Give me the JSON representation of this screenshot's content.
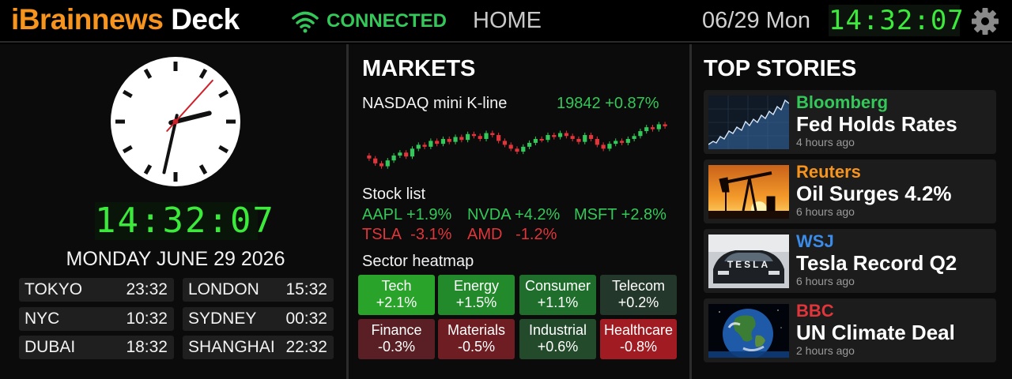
{
  "header": {
    "brand_part1": "iBrainnews",
    "brand_part2": "Deck",
    "status": "CONNECTED",
    "nav_home": "HOME",
    "date": "06/29 Mon",
    "clock": "14:32:07",
    "icons": {
      "wifi": "wifi-icon",
      "settings": "gear-icon"
    }
  },
  "clock_panel": {
    "analog_time": {
      "hour": 14,
      "minute": 32,
      "second": 7
    },
    "digital_time": "14:32:07",
    "long_date": "MONDAY JUNE 29 2026",
    "world_clocks": [
      {
        "city": "TOKYO",
        "time": "23:32"
      },
      {
        "city": "LONDON",
        "time": "15:32"
      },
      {
        "city": "NYC",
        "time": "10:32"
      },
      {
        "city": "SYDNEY",
        "time": "00:32"
      },
      {
        "city": "DUBAI",
        "time": "18:32"
      },
      {
        "city": "SHANGHAI",
        "time": "22:32"
      }
    ]
  },
  "markets": {
    "title": "MARKETS",
    "kline_label": "NASDAQ mini K-line",
    "kline_value": "19842 +0.87%",
    "kline_closes": [
      60,
      55,
      52,
      58,
      63,
      66,
      62,
      70,
      74,
      72,
      78,
      75,
      80,
      77,
      82,
      79,
      85,
      83,
      80,
      86,
      84,
      78,
      74,
      70,
      67,
      72,
      76,
      80,
      79,
      84,
      82,
      86,
      83,
      80,
      77,
      84,
      80,
      74,
      70,
      75,
      78,
      76,
      80,
      83,
      88,
      92,
      90,
      95,
      93
    ],
    "stock_list_label": "Stock list",
    "stocks": [
      {
        "symbol": "AAPL",
        "change": "+1.9%",
        "dir": "up"
      },
      {
        "symbol": "NVDA",
        "change": "+4.2%",
        "dir": "up"
      },
      {
        "symbol": "MSFT",
        "change": "+2.8%",
        "dir": "up"
      },
      {
        "symbol": "TSLA",
        "change": "-3.1%",
        "dir": "down"
      },
      {
        "symbol": "AMD",
        "change": "-1.2%",
        "dir": "down"
      }
    ],
    "heatmap_label": "Sector heatmap",
    "sectors": [
      {
        "name": "Tech",
        "change": "+2.1%",
        "color": "#2aa32a"
      },
      {
        "name": "Energy",
        "change": "+1.5%",
        "color": "#238a2c"
      },
      {
        "name": "Consumer",
        "change": "+1.1%",
        "color": "#1f6e2c"
      },
      {
        "name": "Telecom",
        "change": "+0.2%",
        "color": "#23382a"
      },
      {
        "name": "Finance",
        "change": "-0.3%",
        "color": "#5a1f24"
      },
      {
        "name": "Materials",
        "change": "-0.5%",
        "color": "#6e1d22"
      },
      {
        "name": "Industrial",
        "change": "+0.6%",
        "color": "#244a2c"
      },
      {
        "name": "Healthcare",
        "change": "-0.8%",
        "color": "#a01c22"
      }
    ]
  },
  "stories": {
    "title": "TOP STORIES",
    "items": [
      {
        "source": "Bloomberg",
        "source_color": "#34c759",
        "headline": "Fed Holds Rates",
        "time": "4 hours ago",
        "thumb": "chart-thumbnail"
      },
      {
        "source": "Reuters",
        "source_color": "#f7941d",
        "headline": "Oil Surges 4.2%",
        "time": "6 hours ago",
        "thumb": "oil-pump-thumbnail"
      },
      {
        "source": "WSJ",
        "source_color": "#3b8be8",
        "headline": "Tesla Record Q2",
        "time": "6 hours ago",
        "thumb": "tesla-car-thumbnail"
      },
      {
        "source": "BBC",
        "source_color": "#e0353a",
        "headline": "UN Climate Deal",
        "time": "2 hours ago",
        "thumb": "earth-thumbnail"
      }
    ],
    "thumb_wordmark": "TESLA"
  },
  "colors": {
    "accent": "#f7941d",
    "up": "#34c759",
    "down": "#e0353a",
    "clock_digits": "#3bea3b"
  }
}
